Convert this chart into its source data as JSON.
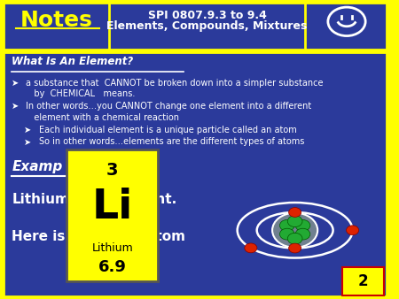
{
  "bg_color": "#FFFF00",
  "header_bg": "#2B3A9B",
  "header_text_color": "#FFFF00",
  "header_center_color": "#FFFFFF",
  "notes_text": "Notes",
  "spi_line1": "SPI 0807.9.3 to 9.4",
  "spi_line2": "Elements, Compounds, Mixtures",
  "body_bg": "#2B3A9B",
  "body_text_color": "#FFFFFF",
  "title_text": "What Is An Element?",
  "bullet1a": "a substance that  CANNOT be broken down into a simpler substance",
  "bullet1b": "   by  CHEMICAL   means.",
  "bullet2a": "In other words…you CANNOT change one element into a different",
  "bullet2b": "   element with a chemical reaction",
  "bullet3": "Each individual element is a unique particle called an atom",
  "bullet4": "So in other words…elements are the different types of atoms",
  "ex_label": "Examp",
  "ex_line2a": "Lithium",
  "ex_line2b": "ent.",
  "ex_line3a": "Here is",
  "ex_line3b": "atom",
  "li_box_bg": "#FFFF00",
  "li_box_fg": "#000000",
  "li_number": "3",
  "li_symbol": "Li",
  "li_name": "Lithium",
  "li_mass": "6.9",
  "page_num": "2"
}
